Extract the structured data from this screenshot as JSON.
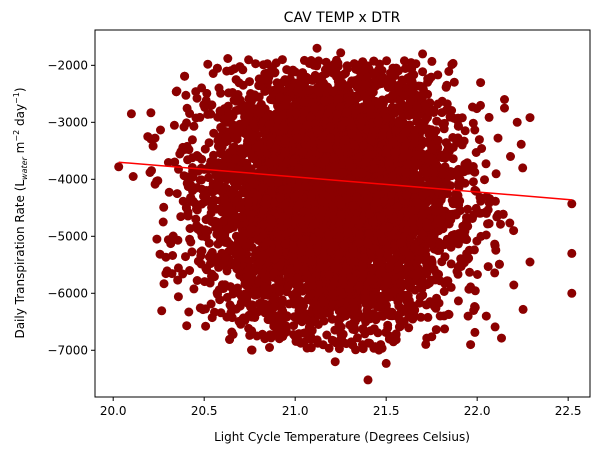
{
  "chart_data": {
    "type": "scatter",
    "title": "CAV TEMP x DTR",
    "xlabel": "Light Cycle Temperature (Degrees Celsius)",
    "ylabel": {
      "main": "Daily Transpiration Rate (L",
      "sub": "water",
      "mid": " m",
      "sup1": "−2",
      "mid2": " day",
      "sup2": "−1",
      "end": ")"
    },
    "xlim": [
      19.9,
      22.62
    ],
    "ylim": [
      -7820,
      -1380
    ],
    "x_ticks": [
      20.0,
      20.5,
      21.0,
      21.5,
      22.0,
      22.5
    ],
    "x_tick_labels": [
      "20.0",
      "20.5",
      "21.0",
      "21.5",
      "22.0",
      "22.5"
    ],
    "y_ticks": [
      -7000,
      -6000,
      -5000,
      -4000,
      -3000,
      -2000
    ],
    "y_tick_labels": [
      "−7000",
      "−6000",
      "−5000",
      "−4000",
      "−3000",
      "−2000"
    ],
    "grid": false,
    "point_color": "#8b0000",
    "trend_color": "#ff0000",
    "trend_line": {
      "x": [
        20.03,
        22.52
      ],
      "y": [
        -3700,
        -4360
      ]
    },
    "cluster": {
      "x_center": 21.2,
      "x_spread": 0.33,
      "y_center": -4300,
      "y_spread": 1150,
      "point_count": 7000
    },
    "points": [
      {
        "x": 20.03,
        "y": -3780
      },
      {
        "x": 20.1,
        "y": -2850
      },
      {
        "x": 20.11,
        "y": -3950
      },
      {
        "x": 20.19,
        "y": -3250
      },
      {
        "x": 20.24,
        "y": -5050
      },
      {
        "x": 20.35,
        "y": -2450
      },
      {
        "x": 20.42,
        "y": -5600
      },
      {
        "x": 20.52,
        "y": -1980
      },
      {
        "x": 20.6,
        "y": -5850
      },
      {
        "x": 20.63,
        "y": -1880
      },
      {
        "x": 20.65,
        "y": -6250
      },
      {
        "x": 20.79,
        "y": -6750
      },
      {
        "x": 20.82,
        "y": -6720
      },
      {
        "x": 20.93,
        "y": -1900
      },
      {
        "x": 21.02,
        "y": -6850
      },
      {
        "x": 21.12,
        "y": -1700
      },
      {
        "x": 21.22,
        "y": -7200
      },
      {
        "x": 21.25,
        "y": -1780
      },
      {
        "x": 21.4,
        "y": -7520
      },
      {
        "x": 21.47,
        "y": -6900
      },
      {
        "x": 21.5,
        "y": -7230
      },
      {
        "x": 21.7,
        "y": -1800
      },
      {
        "x": 21.72,
        "y": -6200
      },
      {
        "x": 21.95,
        "y": -6400
      },
      {
        "x": 22.05,
        "y": -6400
      },
      {
        "x": 22.15,
        "y": -2600
      },
      {
        "x": 22.15,
        "y": -2750
      },
      {
        "x": 22.2,
        "y": -4900
      },
      {
        "x": 22.25,
        "y": -3800
      },
      {
        "x": 22.22,
        "y": -3000
      },
      {
        "x": 22.52,
        "y": -4430
      },
      {
        "x": 22.52,
        "y": -5300
      },
      {
        "x": 22.52,
        "y": -6000
      }
    ]
  }
}
